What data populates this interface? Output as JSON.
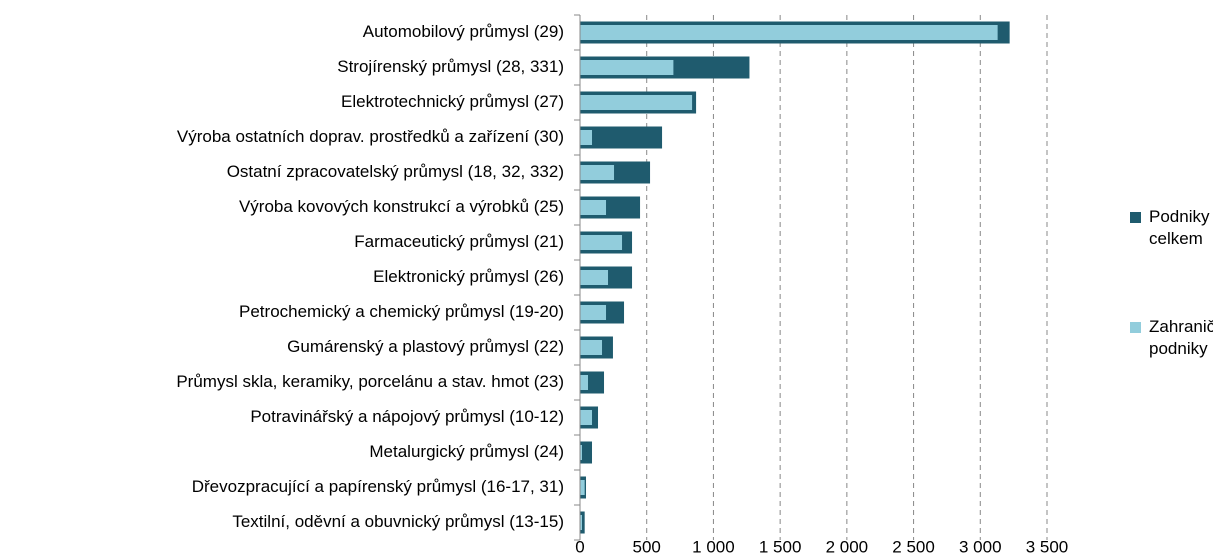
{
  "chart_data": {
    "type": "bar",
    "orientation": "horizontal",
    "overlap": true,
    "categories": [
      "Automobilový průmysl (29)",
      "Strojírenský průmysl (28, 331)",
      "Elektrotechnický průmysl (27)",
      "Výroba ostatních doprav. prostředků a zařízení (30)",
      "Ostatní zpracovatelský průmysl (18, 32, 332)",
      "Výroba kovových konstrukcí a výrobků (25)",
      "Farmaceutický průmysl (21)",
      "Elektronický průmysl (26)",
      "Petrochemický a chemický průmysl (19-20)",
      "Gumárenský a plastový průmysl (22)",
      "Průmysl skla, keramiky, porcelánu a stav. hmot (23)",
      "Potravinářský a nápojový průmysl (10-12)",
      "Metalurgický průmysl (24)",
      "Dřevozpracující a papírenský průmysl (16-17, 31)",
      "Textilní, oděvní a obuvnický průmysl (13-15)"
    ],
    "series": [
      {
        "name": "Podniky celkem",
        "color": "#1f5b6e",
        "values": [
          3220,
          1270,
          870,
          615,
          525,
          450,
          390,
          390,
          330,
          247,
          180,
          135,
          90,
          45,
          35
        ]
      },
      {
        "name": "Zahraniční podniky",
        "color": "#92cddc",
        "values": [
          3130,
          700,
          840,
          90,
          255,
          195,
          315,
          210,
          195,
          165,
          60,
          90,
          15,
          35,
          15
        ]
      }
    ],
    "xlim": [
      0,
      3500
    ],
    "xticks": [
      0,
      500,
      {
        "value": 1000,
        "label": "1 000"
      },
      {
        "value": 1500,
        "label": "1 500"
      },
      {
        "value": 2000,
        "label": "2 000"
      },
      {
        "value": 2500,
        "label": "2 500"
      },
      {
        "value": 3000,
        "label": "3 000"
      },
      {
        "value": 3500,
        "label": "3 500"
      }
    ],
    "grid": true,
    "legend": "right"
  }
}
